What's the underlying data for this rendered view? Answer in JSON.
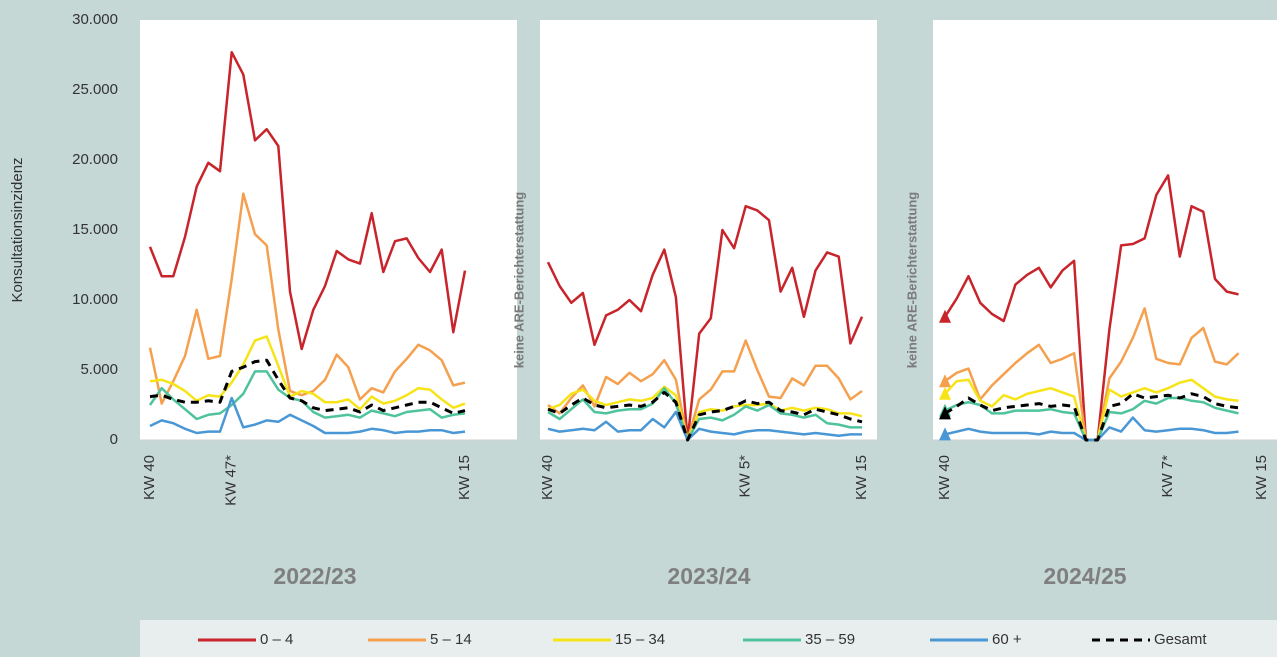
{
  "chart_data": [
    {
      "type": "line",
      "title": "2022/23",
      "ylabel": "Konsultationsinzidenz",
      "ylim": [
        0,
        30000
      ],
      "yticks": [
        0,
        {
          "value": 5000,
          "label": "5.000"
        },
        {
          "value": 10000,
          "label": "10.000"
        },
        {
          "value": 15000,
          "label": "15.000"
        },
        {
          "value": 20000,
          "label": "20.000"
        },
        {
          "value": 25000,
          "label": "25.000"
        },
        {
          "value": 30000,
          "label": "30.000"
        }
      ],
      "categories": [
        "KW 40",
        null,
        null,
        null,
        null,
        null,
        null,
        "KW 47*",
        null,
        null,
        null,
        null,
        null,
        null,
        null,
        null,
        null,
        null,
        null,
        null,
        null,
        null,
        null,
        null,
        null,
        null,
        null,
        "KW 15"
      ],
      "series": [
        {
          "name": "0 – 4",
          "color": "#c8242b",
          "values": [
            13800,
            11700,
            11700,
            14500,
            18100,
            19800,
            19200,
            27700,
            26100,
            21400,
            22200,
            21000,
            10600,
            6500,
            9300,
            11000,
            13500,
            12900,
            12600,
            16200,
            12000,
            14200,
            14400,
            13000,
            12000,
            13600,
            7700,
            12100
          ]
        },
        {
          "name": "5 – 14",
          "color": "#f5a04e",
          "values": [
            6600,
            2600,
            4200,
            6000,
            9300,
            5800,
            6000,
            11500,
            17600,
            14700,
            13900,
            7900,
            3500,
            3200,
            3500,
            4300,
            6100,
            5200,
            2900,
            3700,
            3400,
            4900,
            5800,
            6800,
            6400,
            5700,
            3900,
            4100
          ]
        },
        {
          "name": "15 – 34",
          "color": "#f7e417",
          "values": [
            4200,
            4300,
            4000,
            3500,
            2800,
            3200,
            3100,
            4100,
            5400,
            7100,
            7400,
            5300,
            3100,
            3500,
            3300,
            2700,
            2700,
            2900,
            2200,
            3100,
            2600,
            2800,
            3200,
            3700,
            3600,
            2900,
            2300,
            2600
          ]
        },
        {
          "name": "35 – 59",
          "color": "#4fc39b",
          "values": [
            2500,
            3700,
            2900,
            2200,
            1500,
            1800,
            1900,
            2500,
            3300,
            4900,
            4900,
            3600,
            3000,
            2800,
            2000,
            1600,
            1700,
            1800,
            1600,
            2100,
            1900,
            1700,
            2000,
            2100,
            2200,
            1600,
            1800,
            1900
          ]
        },
        {
          "name": "60 +",
          "color": "#4a97d6",
          "values": [
            1000,
            1400,
            1200,
            800,
            500,
            600,
            600,
            3000,
            900,
            1100,
            1400,
            1300,
            1800,
            1400,
            1000,
            500,
            500,
            500,
            600,
            800,
            700,
            500,
            600,
            600,
            700,
            700,
            500,
            600
          ]
        },
        {
          "name": "Gesamt",
          "color": "#000000",
          "dashed": true,
          "values": [
            3100,
            3200,
            2900,
            2700,
            2700,
            2800,
            2700,
            4900,
            5200,
            5600,
            5700,
            4300,
            3000,
            2800,
            2300,
            2100,
            2200,
            2300,
            2000,
            2500,
            2100,
            2300,
            2500,
            2700,
            2700,
            2300,
            1900,
            2100
          ]
        }
      ]
    },
    {
      "type": "line",
      "title": "2023/24",
      "annotation": "keine ARE-Berichterstattung",
      "ylim": [
        0,
        30000
      ],
      "categories": [
        "KW 40",
        null,
        null,
        null,
        null,
        null,
        null,
        null,
        null,
        null,
        null,
        null,
        null,
        null,
        null,
        null,
        null,
        "KW 5*",
        null,
        null,
        null,
        null,
        null,
        null,
        null,
        null,
        null,
        "KW 15"
      ],
      "series": [
        {
          "color": "#c8242b",
          "values": [
            12700,
            11000,
            9800,
            10500,
            6800,
            8900,
            9300,
            10000,
            9200,
            11800,
            13600,
            10200,
            0,
            7600,
            8700,
            15000,
            13700,
            16700,
            16400,
            15700,
            10600,
            12300,
            8800,
            12100,
            13400,
            13100,
            6900,
            8800
          ]
        },
        {
          "color": "#f5a04e",
          "values": [
            2500,
            1900,
            3000,
            3900,
            2400,
            4500,
            4000,
            4800,
            4200,
            4700,
            5700,
            4300,
            0,
            2900,
            3600,
            4900,
            4900,
            7100,
            5000,
            3100,
            3000,
            4400,
            3900,
            5300,
            5300,
            4400,
            2900,
            3500
          ]
        },
        {
          "color": "#f7e417",
          "values": [
            2200,
            2500,
            3300,
            3600,
            2800,
            2500,
            2700,
            2900,
            2800,
            3000,
            3800,
            3200,
            0,
            2000,
            2200,
            2100,
            2400,
            2500,
            2500,
            2600,
            2100,
            2300,
            2100,
            2300,
            2200,
            1900,
            1900,
            1700
          ]
        },
        {
          "color": "#4fc39b",
          "values": [
            2000,
            1500,
            2200,
            2900,
            2000,
            1900,
            2100,
            2200,
            2200,
            2600,
            3700,
            2600,
            0,
            1500,
            1600,
            1400,
            1800,
            2400,
            2100,
            2500,
            1900,
            1800,
            1600,
            1800,
            1200,
            1100,
            900,
            900
          ]
        },
        {
          "color": "#4a97d6",
          "values": [
            800,
            600,
            700,
            800,
            700,
            1300,
            600,
            700,
            700,
            1500,
            900,
            2000,
            0,
            800,
            600,
            500,
            400,
            600,
            700,
            700,
            600,
            500,
            400,
            500,
            400,
            300,
            400,
            400
          ]
        },
        {
          "color": "#000000",
          "dashed": true,
          "values": [
            2200,
            1900,
            2500,
            3000,
            2500,
            2300,
            2400,
            2500,
            2400,
            2700,
            3400,
            2700,
            0,
            1800,
            2000,
            2100,
            2400,
            2800,
            2600,
            2700,
            2100,
            2000,
            1800,
            2200,
            2000,
            1800,
            1500,
            1300
          ]
        }
      ]
    },
    {
      "type": "line",
      "title": "2024/25",
      "annotation": "keine ARE-Berichterstattung",
      "start_markers": true,
      "ylim": [
        0,
        30000
      ],
      "categories": [
        "KW 40",
        null,
        null,
        null,
        null,
        null,
        null,
        null,
        null,
        null,
        null,
        null,
        null,
        null,
        null,
        null,
        null,
        null,
        null,
        "KW 7*",
        null,
        null,
        null,
        null,
        null,
        null,
        null,
        "KW 15"
      ],
      "series": [
        {
          "color": "#c8242b",
          "values": [
            8800,
            10100,
            11700,
            9800,
            9000,
            8500,
            11100,
            11800,
            12300,
            10900,
            12100,
            12800,
            0,
            0,
            7900,
            13900,
            14000,
            14400,
            17500,
            18900,
            13100,
            16700,
            16300,
            11500,
            10600,
            10400,
            null,
            null
          ]
        },
        {
          "color": "#f5a04e",
          "values": [
            4200,
            4800,
            5100,
            2900,
            3900,
            4700,
            5500,
            6200,
            6800,
            5500,
            5800,
            6200,
            0,
            0,
            4400,
            5600,
            7300,
            9400,
            5800,
            5500,
            5400,
            7300,
            8000,
            5600,
            5400,
            6200,
            null,
            null
          ]
        },
        {
          "color": "#f7e417",
          "values": [
            3300,
            4200,
            4300,
            2800,
            2400,
            3200,
            2900,
            3300,
            3500,
            3700,
            3400,
            3100,
            0,
            0,
            3600,
            3100,
            3400,
            3700,
            3400,
            3700,
            4100,
            4300,
            3700,
            3100,
            2900,
            2800,
            null,
            null
          ]
        },
        {
          "color": "#4fc39b",
          "values": [
            2100,
            2500,
            2700,
            2500,
            1900,
            1900,
            2100,
            2100,
            2100,
            2200,
            2000,
            1900,
            0,
            0,
            2000,
            1900,
            2200,
            2800,
            2600,
            3000,
            3000,
            2800,
            2700,
            2300,
            2100,
            1900,
            null,
            null
          ]
        },
        {
          "color": "#4a97d6",
          "values": [
            400,
            600,
            800,
            600,
            500,
            500,
            500,
            500,
            400,
            600,
            500,
            500,
            0,
            0,
            900,
            600,
            1600,
            700,
            600,
            700,
            800,
            800,
            700,
            500,
            500,
            600,
            null,
            null
          ]
        },
        {
          "color": "#000000",
          "dashed": true,
          "values": [
            1900,
            2400,
            3000,
            2500,
            2100,
            2300,
            2400,
            2500,
            2600,
            2400,
            2500,
            2400,
            0,
            0,
            2400,
            2600,
            3300,
            3000,
            3100,
            3200,
            3000,
            3300,
            3100,
            2600,
            2400,
            2300,
            null,
            null
          ]
        }
      ]
    }
  ]
}
